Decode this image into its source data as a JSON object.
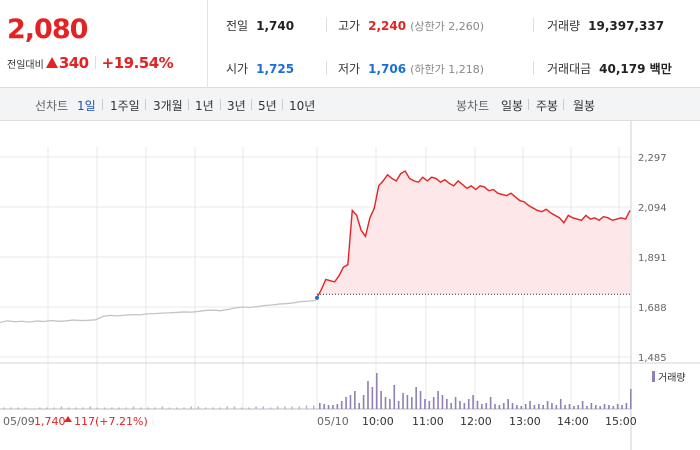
{
  "quote": {
    "price": "2,080",
    "change_label": "전일대비",
    "change_amount": "340",
    "change_rate": "+19.54%"
  },
  "stats": {
    "prev_close": {
      "label": "전일",
      "value": "1,740"
    },
    "open": {
      "label": "시가",
      "value": "1,725"
    },
    "high": {
      "label": "고가",
      "value": "2,240",
      "sub": "(상한가 2,260)"
    },
    "low": {
      "label": "저가",
      "value": "1,706",
      "sub": "(하한가 1,218)"
    },
    "volume": {
      "label": "거래량",
      "value": "19,397,337"
    },
    "trade_value": {
      "label": "거래대금",
      "value": "40,179 백만"
    }
  },
  "tabs": {
    "line_label": "선차트",
    "line_periods": [
      "1일",
      "1주일",
      "3개월",
      "1년",
      "3년",
      "5년",
      "10년"
    ],
    "active": "1일",
    "candle_label": "봉차트",
    "candle_periods": [
      "일봉",
      "주봉",
      "월봉"
    ]
  },
  "chart_data": {
    "type": "line",
    "y_ticks": [
      "2,297",
      "2,094",
      "1,891",
      "1,688",
      "1,485"
    ],
    "y_tick_values": [
      2297,
      2094,
      1891,
      1688,
      1485
    ],
    "x_labels": [
      "05/09",
      "05/10",
      "10:00",
      "11:00",
      "12:00",
      "13:00",
      "14:00",
      "15:00"
    ],
    "prev_day_info": {
      "date": "05/09",
      "close": "1,740",
      "change": "117",
      "rate": "(+7.21%)"
    },
    "reference_price": 1740,
    "volume_legend": "거래량",
    "colors": {
      "up": "#e32323",
      "fill": "#fde7e9",
      "prev": "#c4c4c4",
      "volume": "#8e7fb5",
      "grid": "#e9e9e9"
    },
    "series": [
      {
        "values_prev_day": [
          1625,
          1632,
          1628,
          1630,
          1627,
          1631,
          1629,
          1633,
          1630,
          1632,
          1635,
          1633,
          1634,
          1636,
          1650,
          1654,
          1652,
          1655,
          1657,
          1656,
          1660,
          1661,
          1663,
          1664,
          1666,
          1668,
          1667,
          1670,
          1674,
          1675,
          1673,
          1678,
          1684,
          1688,
          1686,
          1690,
          1694,
          1696,
          1700,
          1702,
          1705,
          1710,
          1712,
          1715
        ],
        "values_today": [
          1725,
          1760,
          1800,
          1795,
          1790,
          1815,
          1850,
          1860,
          2080,
          2060,
          2000,
          1975,
          2050,
          2090,
          2180,
          2200,
          2225,
          2210,
          2200,
          2230,
          2240,
          2210,
          2200,
          2195,
          2215,
          2200,
          2215,
          2210,
          2195,
          2205,
          2190,
          2180,
          2200,
          2185,
          2170,
          2180,
          2165,
          2180,
          2175,
          2160,
          2165,
          2150,
          2145,
          2140,
          2150,
          2135,
          2120,
          2115,
          2100,
          2090,
          2080,
          2075,
          2085,
          2070,
          2060,
          2050,
          2030,
          2060,
          2050,
          2045,
          2040,
          2060,
          2045,
          2050,
          2040,
          2055,
          2050,
          2040,
          2045,
          2050,
          2045,
          2080
        ]
      }
    ],
    "volume_prev_day": [
      1,
      1,
      1,
      1,
      0,
      1,
      1,
      1,
      2,
      1,
      1,
      1,
      2,
      1,
      1,
      1,
      1,
      1,
      2,
      1,
      1,
      1,
      2,
      1,
      1,
      1,
      2,
      2,
      1,
      1,
      1,
      2,
      2,
      1,
      1,
      2,
      2,
      1,
      2,
      2,
      2,
      2,
      3,
      3
    ],
    "volume_today": [
      6,
      5,
      4,
      4,
      5,
      8,
      12,
      14,
      18,
      6,
      14,
      28,
      22,
      36,
      18,
      12,
      10,
      24,
      8,
      16,
      14,
      12,
      22,
      18,
      10,
      8,
      12,
      18,
      14,
      10,
      6,
      12,
      8,
      6,
      10,
      14,
      8,
      5,
      6,
      12,
      5,
      4,
      6,
      10,
      6,
      4,
      3,
      5,
      8,
      4,
      5,
      4,
      8,
      6,
      4,
      10,
      4,
      5,
      3,
      4,
      8,
      3,
      6,
      4,
      3,
      5,
      4,
      3,
      5,
      4,
      6,
      20
    ]
  }
}
